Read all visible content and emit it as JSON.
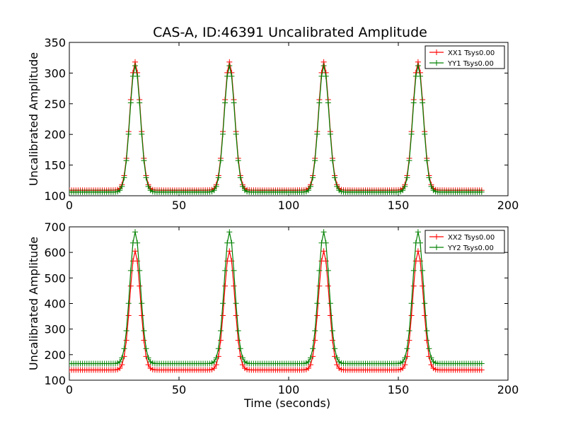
{
  "title": "CAS-A, ID:46391 Uncalibrated Amplitude",
  "colors": {
    "xx": "#ff0000",
    "yy": "#008000"
  },
  "chart_data": [
    {
      "type": "line",
      "xlabel": "",
      "ylabel": "Uncalibrated Amplitude",
      "xlim": [
        0,
        200
      ],
      "ylim": [
        100,
        350
      ],
      "xticks": [
        0,
        50,
        100,
        150,
        200
      ],
      "yticks": [
        100,
        150,
        200,
        250,
        300,
        350
      ],
      "legend_position": "upper right",
      "grid": false,
      "marker": "+",
      "x_range": [
        0,
        188
      ],
      "x_step": 1,
      "peaks_x": [
        30,
        73,
        116,
        159
      ],
      "peak_width_sigma": 2.4,
      "series": [
        {
          "name": "XX1 Tsys0.00",
          "color": "#ff0000",
          "baseline": 109,
          "peak": 318
        },
        {
          "name": "YY1 Tsys0.00",
          "color": "#008000",
          "baseline": 106,
          "peak": 312
        }
      ]
    },
    {
      "type": "line",
      "xlabel": "Time (seconds)",
      "ylabel": "Uncalibrated Amplitude",
      "xlim": [
        0,
        200
      ],
      "ylim": [
        100,
        700
      ],
      "xticks": [
        0,
        50,
        100,
        150,
        200
      ],
      "yticks": [
        100,
        200,
        300,
        400,
        500,
        600,
        700
      ],
      "legend_position": "upper right",
      "grid": false,
      "marker": "+",
      "x_range": [
        0,
        188
      ],
      "x_step": 1,
      "peaks_x": [
        30,
        73,
        116,
        159
      ],
      "peak_width_sigma": 2.4,
      "series": [
        {
          "name": "XX2 Tsys0.00",
          "color": "#ff0000",
          "baseline": 140,
          "peak": 605
        },
        {
          "name": "YY2 Tsys0.00",
          "color": "#008000",
          "baseline": 165,
          "peak": 680
        }
      ]
    }
  ]
}
